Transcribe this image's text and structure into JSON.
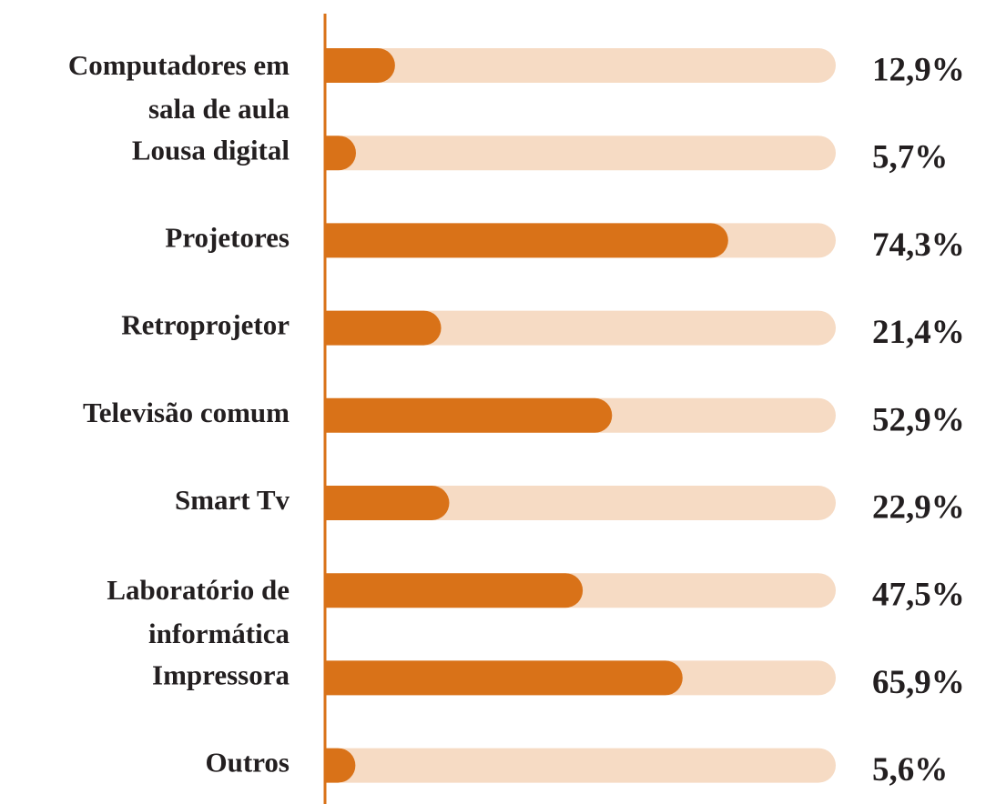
{
  "chart_data": {
    "type": "hbar",
    "categories": [
      "Computadores em\nsala de aula",
      "Lousa digital",
      "Projetores",
      "Retroprojetor",
      "Televisão comum",
      "Smart Tv",
      "Laboratório de\ninformática",
      "Impressora",
      "Outros"
    ],
    "values": [
      12.9,
      5.7,
      74.3,
      21.4,
      52.9,
      22.9,
      47.5,
      65.9,
      5.6
    ],
    "value_labels": [
      "12,9%",
      "5,7%",
      "74,3%",
      "21,4%",
      "52,9%",
      "22,9%",
      "47,5%",
      "65,9%",
      "5,6%"
    ],
    "color": "#d97218",
    "track_color": "#f6dbc4"
  }
}
